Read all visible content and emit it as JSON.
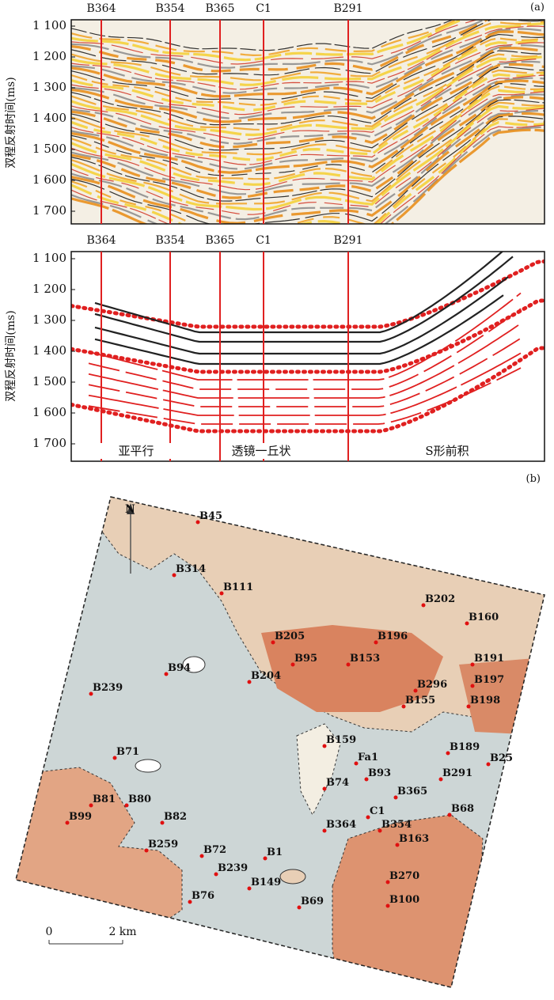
{
  "panel_a": {
    "label": "(a)",
    "wells": [
      "B364",
      "B354",
      "B365",
      "C1",
      "B291"
    ],
    "y_axis_label": "双程反射时间(ms)",
    "yticks": [
      "1 100",
      "1 200",
      "1 300",
      "1 400",
      "1 500",
      "1 600",
      "1 700"
    ]
  },
  "panel_a_interpretation": {
    "wells": [
      "B364",
      "B354",
      "B365",
      "C1",
      "B291"
    ],
    "y_axis_label": "双程反射时间(ms)",
    "yticks": [
      "1 100",
      "1 200",
      "1 300",
      "1 400",
      "1 500",
      "1 600",
      "1 700"
    ],
    "facies": [
      "亚平行",
      "透镜一丘状",
      "S形前积"
    ]
  },
  "panel_b": {
    "label": "(b)",
    "north": "N",
    "wells": [
      "B45",
      "B314",
      "B111",
      "B202",
      "B160",
      "B205",
      "B196",
      "B95",
      "B153",
      "B191",
      "B94",
      "B204",
      "B296",
      "B197",
      "B239",
      "B155",
      "B198",
      "B159",
      "B189",
      "B71",
      "Fa1",
      "B25",
      "B93",
      "B291",
      "B74",
      "B365",
      "B81",
      "B80",
      "B99",
      "B82",
      "B68",
      "C1",
      "B364",
      "B354",
      "B163",
      "B259",
      "B72",
      "B1",
      "B239",
      "B149",
      "B270",
      "B76",
      "B69",
      "B100"
    ],
    "scale": {
      "start": "0",
      "end": "2 km"
    }
  }
}
